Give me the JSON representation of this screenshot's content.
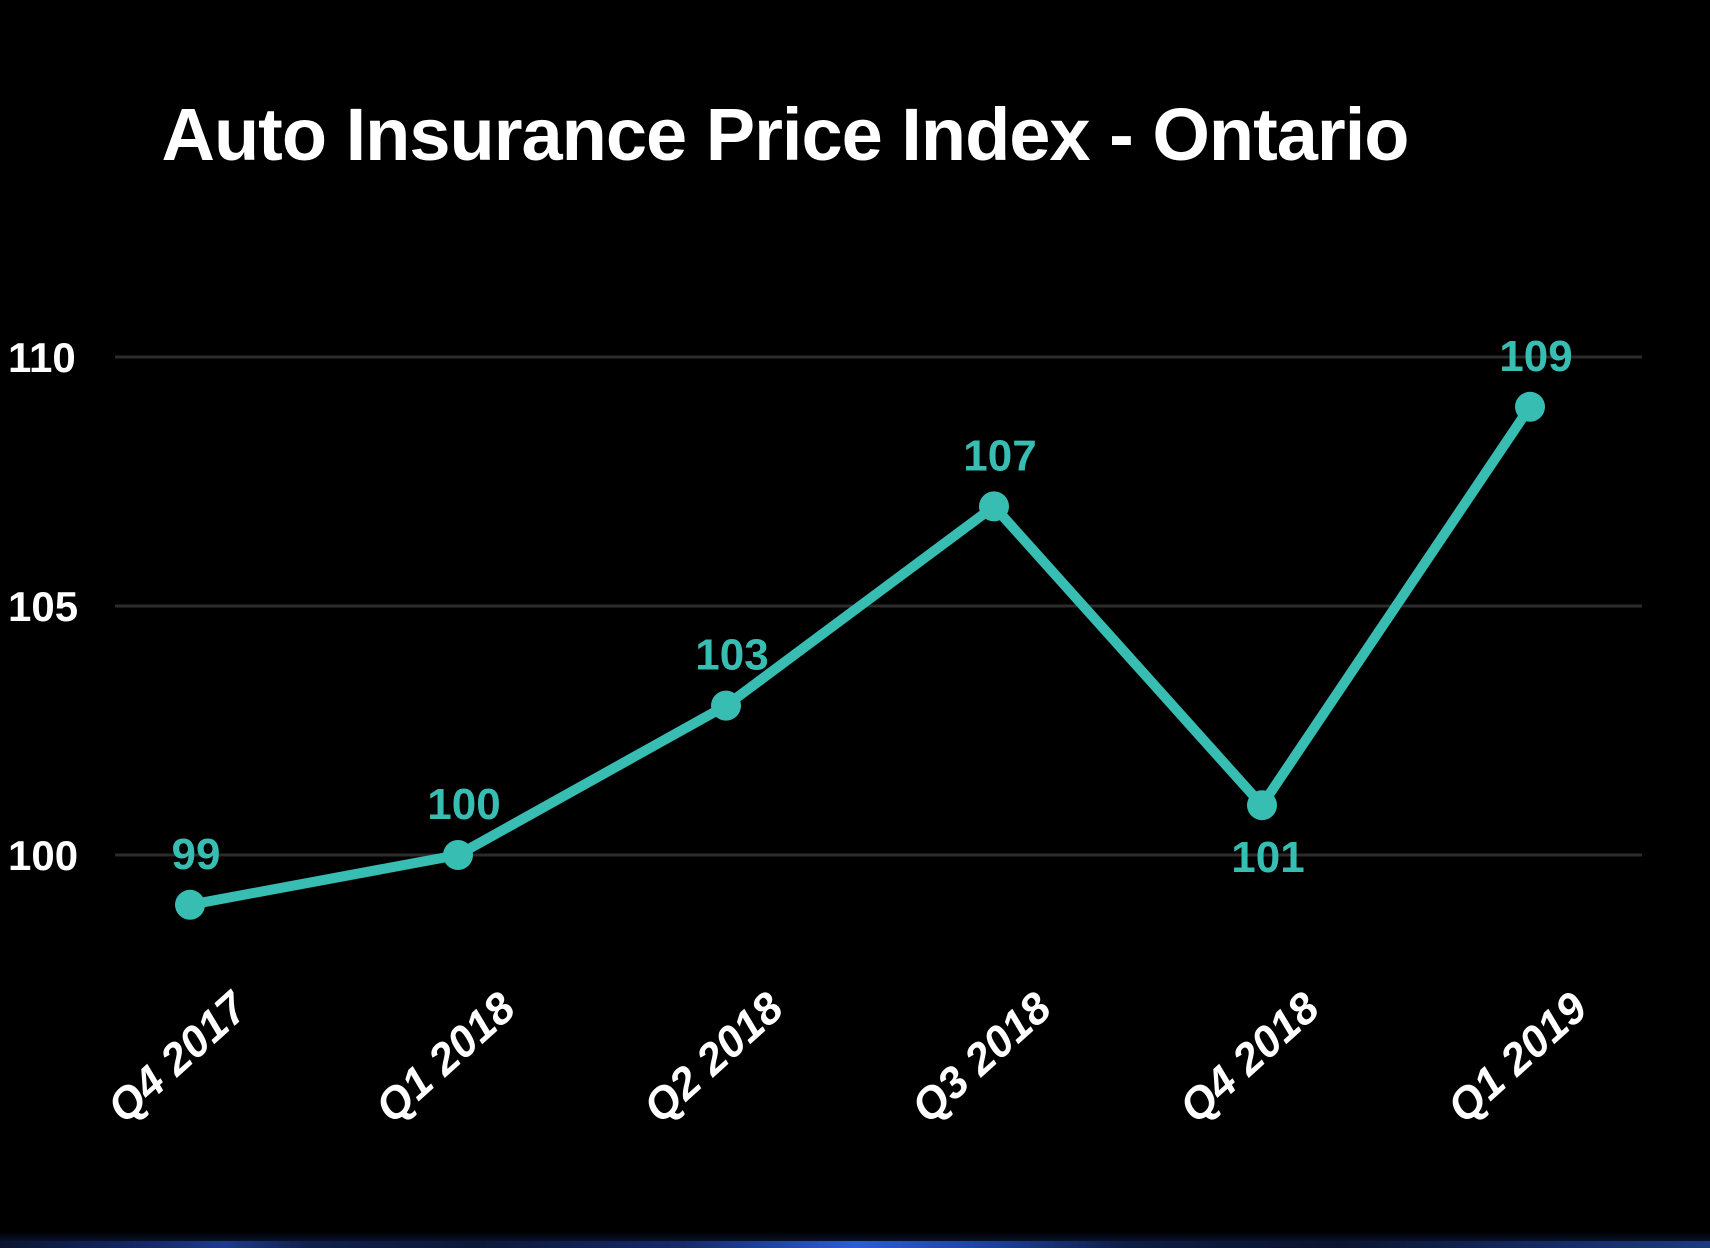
{
  "page": {
    "background_color": "#000000",
    "text_color": "#ffffff"
  },
  "chart_data": {
    "type": "line",
    "title": "Auto Insurance Price Index - Ontario",
    "categories": [
      "Q4 2017",
      "Q1 2018",
      "Q2 2018",
      "Q3 2018",
      "Q4 2018",
      "Q1 2019"
    ],
    "series": [
      {
        "name": "Auto Insurance Price Index",
        "values": [
          99,
          100,
          103,
          107,
          101,
          109
        ],
        "point_label_positions": [
          "above",
          "above",
          "above",
          "above",
          "below",
          "above"
        ],
        "color": "#38bdb2"
      }
    ],
    "yticks": [
      110,
      105,
      100
    ],
    "ylim": [
      98,
      111
    ],
    "grid": true,
    "legend_position": "none",
    "xlabel": "",
    "ylabel": "",
    "colors": {
      "line": "#38bdb2",
      "point": "#38bdb2",
      "point_label": "#38bdb2",
      "grid": "#2c2c2c",
      "axis_text": "#ffffff",
      "title_text": "#ffffff",
      "background": "#000000"
    }
  },
  "footer": {
    "strip_note": "blue-edge-strip"
  }
}
